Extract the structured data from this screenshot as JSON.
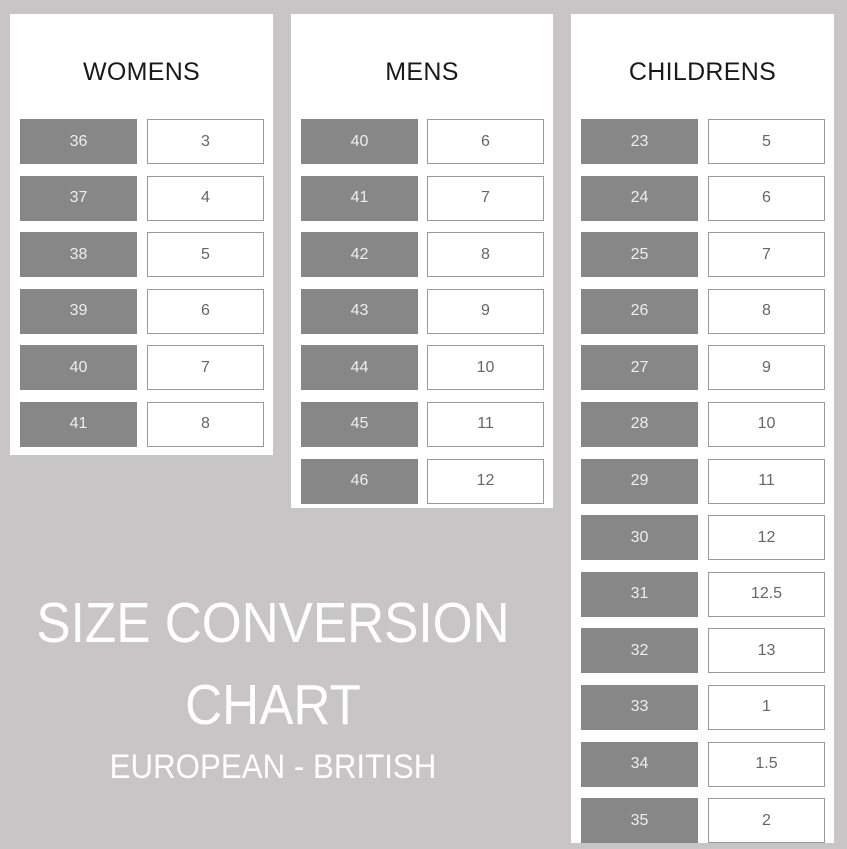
{
  "title": {
    "line1": "SIZE CONVERSION",
    "line2": "CHART",
    "subtitle": "EUROPEAN - BRITISH"
  },
  "colors": {
    "background": "#c7c5c5",
    "european_cell": "#878787",
    "british_cell": "#ffffff"
  },
  "tables": {
    "womens": {
      "heading": "WOMENS",
      "rows": [
        [
          "36",
          "3"
        ],
        [
          "37",
          "4"
        ],
        [
          "38",
          "5"
        ],
        [
          "39",
          "6"
        ],
        [
          "40",
          "7"
        ],
        [
          "41",
          "8"
        ]
      ]
    },
    "mens": {
      "heading": "MENS",
      "rows": [
        [
          "40",
          "6"
        ],
        [
          "41",
          "7"
        ],
        [
          "42",
          "8"
        ],
        [
          "43",
          "9"
        ],
        [
          "44",
          "10"
        ],
        [
          "45",
          "11"
        ],
        [
          "46",
          "12"
        ]
      ]
    },
    "childrens": {
      "heading": "CHILDRENS",
      "rows": [
        [
          "23",
          "5"
        ],
        [
          "24",
          "6"
        ],
        [
          "25",
          "7"
        ],
        [
          "26",
          "8"
        ],
        [
          "27",
          "9"
        ],
        [
          "28",
          "10"
        ],
        [
          "29",
          "11"
        ],
        [
          "30",
          "12"
        ],
        [
          "31",
          "12.5"
        ],
        [
          "32",
          "13"
        ],
        [
          "33",
          "1"
        ],
        [
          "34",
          "1.5"
        ],
        [
          "35",
          "2"
        ]
      ]
    }
  }
}
